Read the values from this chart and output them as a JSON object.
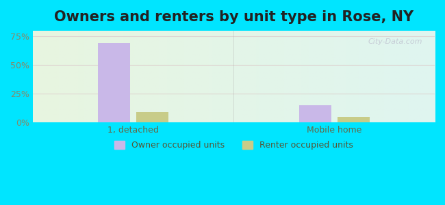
{
  "title": "Owners and renters by unit type in Rose, NY",
  "categories": [
    "1, detached",
    "Mobile home"
  ],
  "owner_values": [
    69.0,
    15.0
  ],
  "renter_values": [
    9.0,
    5.0
  ],
  "owner_color": "#c9b8e8",
  "renter_color": "#c8cc88",
  "yticks": [
    0,
    25,
    50,
    75
  ],
  "ytick_labels": [
    "0%",
    "25%",
    "50%",
    "75%"
  ],
  "ylim": [
    0,
    80
  ],
  "legend_owner": "Owner occupied units",
  "legend_renter": "Renter occupied units",
  "bg_outer": "#00e5ff",
  "bg_inner_left": "#e8f5e0",
  "bg_inner_right": "#dff5f0",
  "watermark": "City-Data.com",
  "title_fontsize": 15,
  "axis_label_color": "#888866",
  "grid_color": "#ddcccc"
}
